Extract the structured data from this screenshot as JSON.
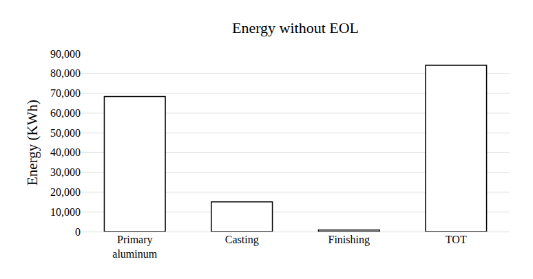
{
  "chart_data": {
    "type": "bar",
    "title": "Energy without EOL",
    "y_label": "Energy (KWh)",
    "categories": [
      "Primary aluminum",
      "Casting",
      "Finishing",
      "TOT"
    ],
    "values": [
      68300,
      15000,
      800,
      84100
    ],
    "color": "#ffffff",
    "ylim": [
      0,
      90000
    ],
    "yticks": [
      0,
      {
        "value": 10000,
        "label": "10,000"
      },
      {
        "value": 20000,
        "label": "20,000"
      },
      {
        "value": 30000,
        "label": "30,000"
      },
      {
        "value": 40000,
        "label": "40,000"
      },
      {
        "value": 50000,
        "label": "50,000"
      },
      {
        "value": 60000,
        "label": "60,000"
      },
      {
        "value": 70000,
        "label": "70,000"
      },
      {
        "value": 80000,
        "label": "80,000"
      },
      {
        "value": 90000,
        "label": "90,000"
      }
    ],
    "grid": true
  }
}
